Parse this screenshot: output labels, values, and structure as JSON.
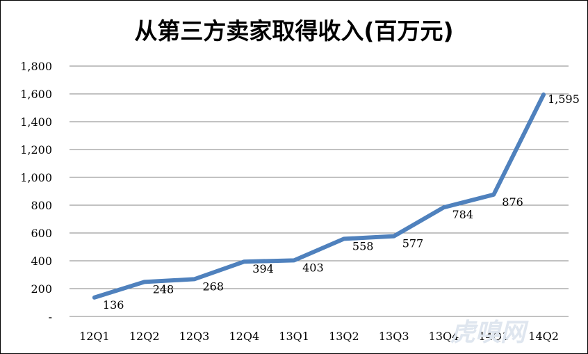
{
  "chart_data": {
    "type": "line",
    "title": "从第三方卖家取得收入(百万元)",
    "xlabel": "",
    "ylabel": "",
    "categories": [
      "12Q1",
      "12Q2",
      "12Q3",
      "12Q4",
      "13Q1",
      "13Q2",
      "13Q3",
      "13Q4",
      "14Q1",
      "14Q2"
    ],
    "series": [
      {
        "values": [
          136,
          248,
          268,
          394,
          403,
          558,
          577,
          784,
          876,
          1595
        ]
      }
    ],
    "data_labels": [
      "136",
      "248",
      "268",
      "394",
      "403",
      "558",
      "577",
      "784",
      "876",
      "1,595"
    ],
    "y_ticks": [
      "-",
      "200",
      "400",
      "600",
      "800",
      "1,000",
      "1,200",
      "1,400",
      "1,600",
      "1,800"
    ],
    "ylim": [
      0,
      1800
    ],
    "grid": true,
    "legend": "none",
    "line_color": "#4f81bd",
    "grid_color": "#868686"
  },
  "watermark": "虎嗅网"
}
